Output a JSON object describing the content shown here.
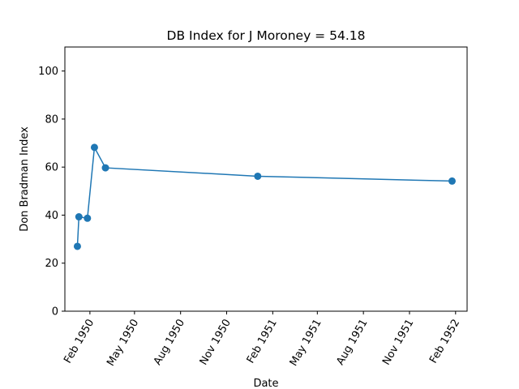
{
  "chart_data": {
    "type": "line",
    "title": "DB Index for J Moroney = 54.18",
    "xlabel": "Date",
    "ylabel": "Don Bradman Index",
    "ylim": [
      0,
      110
    ],
    "xlim": [
      "1949-12-13",
      "1952-02-24"
    ],
    "yticks": [
      0,
      20,
      40,
      60,
      80,
      100
    ],
    "xticks": [
      {
        "date": "1950-02-01",
        "label": "Feb 1950"
      },
      {
        "date": "1950-05-01",
        "label": "May 1950"
      },
      {
        "date": "1950-08-01",
        "label": "Aug 1950"
      },
      {
        "date": "1950-11-01",
        "label": "Nov 1950"
      },
      {
        "date": "1951-02-01",
        "label": "Feb 1951"
      },
      {
        "date": "1951-05-01",
        "label": "May 1951"
      },
      {
        "date": "1951-08-01",
        "label": "Aug 1951"
      },
      {
        "date": "1951-11-01",
        "label": "Nov 1951"
      },
      {
        "date": "1952-02-01",
        "label": "Feb 1952"
      }
    ],
    "grid": false,
    "series": [
      {
        "color": "#1f77b4",
        "x": [
          "1950-01-07",
          "1950-01-10",
          "1950-01-27",
          "1950-02-10",
          "1950-03-04",
          "1951-01-02",
          "1952-01-25"
        ],
        "y": [
          27.0,
          39.3,
          38.7,
          68.2,
          59.7,
          56.2,
          54.18
        ]
      }
    ]
  }
}
